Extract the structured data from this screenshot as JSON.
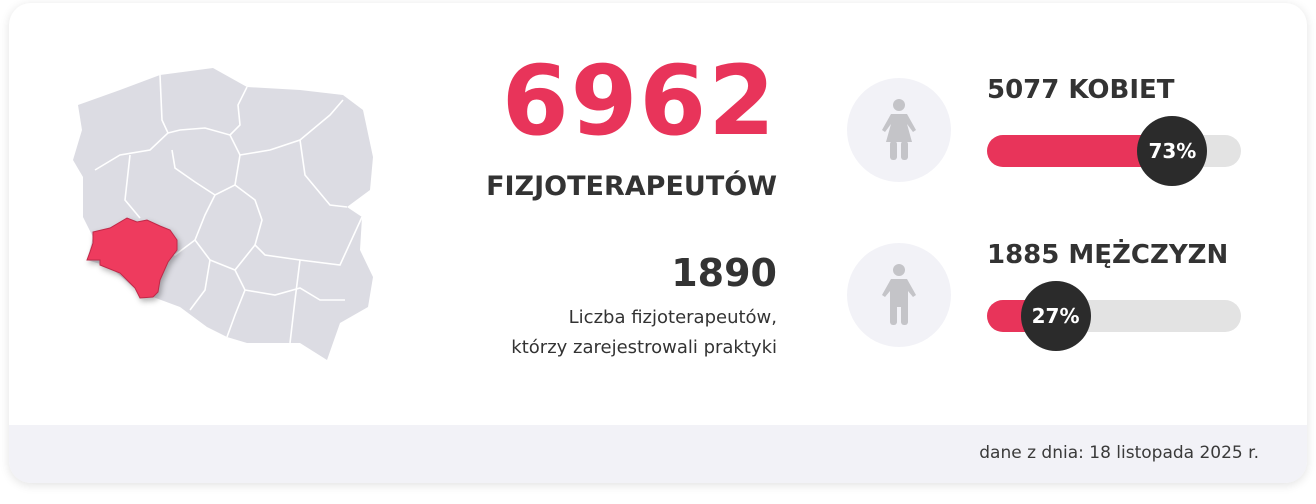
{
  "total": {
    "value": "6962",
    "label": "FIZJOTERAPEUTÓW"
  },
  "practices": {
    "value": "1890",
    "line1": "Liczba fizjoterapeutów,",
    "line2": "którzy zarejestrowali praktyki"
  },
  "women": {
    "label": "5077 KOBIET",
    "percent": 73,
    "percent_label": "73%",
    "icon": "female-icon"
  },
  "men": {
    "label": "1885 MĘŻCZYZN",
    "percent": 27,
    "percent_label": "27%",
    "icon": "male-icon"
  },
  "footer": {
    "date": "dane z dnia: 18 listopada 2025 r."
  },
  "colors": {
    "accent": "#e8345a",
    "dark": "#2b2b2b",
    "map": "#dcdce3"
  }
}
